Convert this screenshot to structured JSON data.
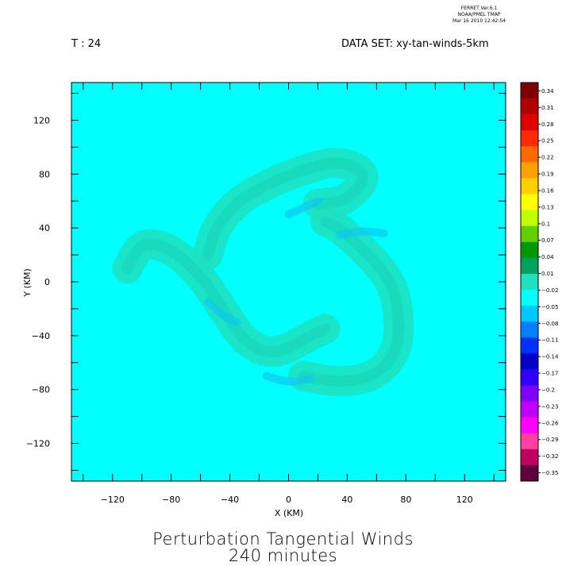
{
  "header": {
    "time_label": "T : 24",
    "dataset_label": "DATA SET: xy-tan-winds-5km",
    "software": [
      "FERRET  Ver.6.1",
      "NOAA/PMEL TMAP",
      "Mar 16 2010 12:42:54"
    ]
  },
  "title": {
    "line1": "Perturbation Tangential Winds",
    "line2": "240 minutes"
  },
  "colors": {
    "background": "#00ffff",
    "band_main": "#20e0c0",
    "band_dark": "#18d0b0",
    "negative": "#10c8f0"
  },
  "chart_data": {
    "type": "heatmap",
    "title": "Perturbation Tangential Winds",
    "subtitle": "240 minutes",
    "xlabel": "X (KM)",
    "ylabel": "Y (KM)",
    "xlim": [
      -148,
      148
    ],
    "ylim": [
      -148,
      148
    ],
    "x_ticks": [
      -120,
      -80,
      -40,
      0,
      40,
      80,
      120
    ],
    "y_ticks": [
      120,
      80,
      40,
      0,
      -40,
      -80,
      -120
    ],
    "background_value": 0.01,
    "colorbar": {
      "levels": [
        0.34,
        0.31,
        0.28,
        0.25,
        0.22,
        0.19,
        0.16,
        0.13,
        0.1,
        0.07,
        0.04,
        0.01,
        -0.02,
        -0.05,
        -0.08,
        -0.11,
        -0.14,
        -0.17,
        -0.2,
        -0.23,
        -0.26,
        -0.29,
        -0.32,
        -0.35
      ],
      "colors": [
        "#7f0000",
        "#b00000",
        "#e00000",
        "#ff2a00",
        "#ff6a00",
        "#ff9f00",
        "#ffd000",
        "#ffff00",
        "#c0ff00",
        "#60d000",
        "#009a00",
        "#00a060",
        "#20e0c0",
        "#00ffff",
        "#00c8ff",
        "#0080ff",
        "#0030ff",
        "#0000c8",
        "#3000ff",
        "#8000ff",
        "#c000ff",
        "#ff00ff",
        "#ff40a0",
        "#c00060",
        "#600040"
      ]
    },
    "spiral_arms": [
      {
        "name": "",
        "value": 0.025,
        "points": [
          [
            -110,
            10
          ],
          [
            -100,
            30
          ],
          [
            -80,
            25
          ],
          [
            -60,
            5
          ],
          [
            -45,
            -20
          ],
          [
            -30,
            -45
          ],
          [
            -10,
            -55
          ],
          [
            15,
            -40
          ],
          [
            25,
            -35
          ]
        ]
      },
      {
        "name": "",
        "value": 0.025,
        "points": [
          [
            10,
            -70
          ],
          [
            35,
            -75
          ],
          [
            60,
            -70
          ],
          [
            75,
            -50
          ],
          [
            75,
            -20
          ],
          [
            70,
            0
          ],
          [
            55,
            20
          ],
          [
            35,
            40
          ],
          [
            25,
            45
          ]
        ]
      },
      {
        "name": "",
        "value": 0.025,
        "points": [
          [
            -55,
            20
          ],
          [
            -50,
            40
          ],
          [
            -35,
            60
          ],
          [
            -10,
            75
          ],
          [
            15,
            85
          ],
          [
            35,
            90
          ],
          [
            55,
            80
          ],
          [
            40,
            60
          ],
          [
            20,
            58
          ]
        ]
      }
    ],
    "negative_patches": [
      {
        "value": -0.01,
        "points": [
          [
            -55,
            -15
          ],
          [
            -45,
            -25
          ],
          [
            -35,
            -30
          ]
        ]
      },
      {
        "value": -0.01,
        "points": [
          [
            -15,
            -70
          ],
          [
            0,
            -75
          ],
          [
            15,
            -72
          ]
        ]
      },
      {
        "value": -0.01,
        "points": [
          [
            35,
            35
          ],
          [
            50,
            38
          ],
          [
            65,
            36
          ]
        ]
      },
      {
        "value": -0.01,
        "points": [
          [
            0,
            50
          ],
          [
            10,
            55
          ],
          [
            20,
            60
          ]
        ]
      }
    ]
  }
}
